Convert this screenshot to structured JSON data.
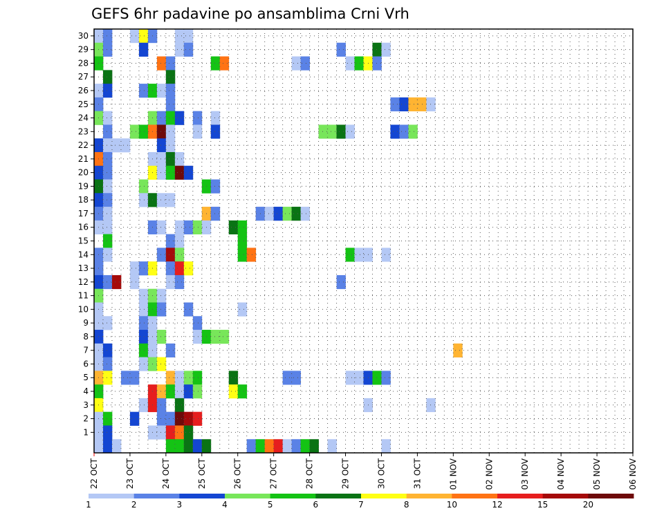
{
  "chart_data": {
    "type": "heatmap",
    "title": "GEFS 6hr padavine po ansamblima Crni Vrh",
    "xlabel": "",
    "ylabel": "",
    "x_tick_labels": [
      "22 OCT",
      "23 OCT",
      "24 OCT",
      "25 OCT",
      "26 OCT",
      "27 OCT",
      "28 OCT",
      "29 OCT",
      "30 OCT",
      "31 OCT",
      "01 NOV",
      "02 NOV",
      "03 NOV",
      "04 NOV",
      "05 NOV",
      "06 NOV"
    ],
    "y_tick_labels": [
      "1",
      "2",
      "3",
      "4",
      "5",
      "6",
      "7",
      "8",
      "9",
      "10",
      "11",
      "12",
      "13",
      "14",
      "15",
      "16",
      "17",
      "18",
      "19",
      "20",
      "21",
      "22",
      "23",
      "24",
      "25",
      "26",
      "27",
      "28",
      "29",
      "30"
    ],
    "x_range_days": [
      0,
      15
    ],
    "y_range": [
      0,
      30
    ],
    "step_hours": 6,
    "grid": true,
    "legend_placement": "bottom",
    "legend": {
      "levels": [
        "1",
        "2",
        "3",
        "4",
        "5",
        "6",
        "7",
        "8",
        "10",
        "12",
        "15",
        "20"
      ],
      "colors": [
        "#b4c8f5",
        "#5a82e6",
        "#1446d2",
        "#78e65a",
        "#14c314",
        "#0a7314",
        "#ffff14",
        "#ffb432",
        "#ff7314",
        "#e61e1e",
        "#a50a0a",
        "#6e0a0a"
      ]
    },
    "cells_note": "each cell: [member(0-30), 6h step index from 22 OCT 00Z, color class 0-12]",
    "cells": [
      [
        30,
        0,
        1
      ],
      [
        30,
        1,
        2
      ],
      [
        30,
        4,
        1
      ],
      [
        30,
        5,
        7
      ],
      [
        30,
        6,
        2
      ],
      [
        30,
        9,
        1
      ],
      [
        30,
        10,
        1
      ],
      [
        29,
        0,
        4
      ],
      [
        29,
        1,
        2
      ],
      [
        29,
        5,
        3
      ],
      [
        29,
        9,
        1
      ],
      [
        29,
        10,
        2
      ],
      [
        29,
        27,
        2
      ],
      [
        29,
        31,
        6
      ],
      [
        29,
        32,
        1
      ],
      [
        28,
        0,
        5
      ],
      [
        28,
        7,
        9
      ],
      [
        28,
        8,
        2
      ],
      [
        28,
        13,
        5
      ],
      [
        28,
        14,
        9
      ],
      [
        28,
        22,
        1
      ],
      [
        28,
        23,
        2
      ],
      [
        28,
        28,
        1
      ],
      [
        28,
        29,
        5
      ],
      [
        28,
        30,
        7
      ],
      [
        28,
        31,
        2
      ],
      [
        27,
        1,
        6
      ],
      [
        27,
        8,
        6
      ],
      [
        26,
        0,
        1
      ],
      [
        26,
        1,
        3
      ],
      [
        26,
        5,
        2
      ],
      [
        26,
        6,
        5
      ],
      [
        26,
        7,
        1
      ],
      [
        26,
        8,
        2
      ],
      [
        25,
        0,
        2
      ],
      [
        25,
        8,
        2
      ],
      [
        25,
        33,
        2
      ],
      [
        25,
        34,
        3
      ],
      [
        25,
        35,
        8
      ],
      [
        25,
        36,
        8
      ],
      [
        25,
        37,
        1
      ],
      [
        24,
        0,
        4
      ],
      [
        24,
        1,
        1
      ],
      [
        24,
        6,
        4
      ],
      [
        24,
        7,
        2
      ],
      [
        24,
        8,
        5
      ],
      [
        24,
        9,
        3
      ],
      [
        24,
        11,
        2
      ],
      [
        24,
        13,
        1
      ],
      [
        23,
        1,
        2
      ],
      [
        23,
        4,
        4
      ],
      [
        23,
        5,
        5
      ],
      [
        23,
        6,
        9
      ],
      [
        23,
        7,
        12
      ],
      [
        23,
        8,
        1
      ],
      [
        23,
        11,
        1
      ],
      [
        23,
        13,
        3
      ],
      [
        23,
        25,
        4
      ],
      [
        23,
        26,
        4
      ],
      [
        23,
        27,
        6
      ],
      [
        23,
        28,
        1
      ],
      [
        23,
        33,
        3
      ],
      [
        23,
        34,
        2
      ],
      [
        23,
        35,
        4
      ],
      [
        22,
        0,
        3
      ],
      [
        22,
        1,
        1
      ],
      [
        22,
        2,
        1
      ],
      [
        22,
        3,
        1
      ],
      [
        22,
        7,
        3
      ],
      [
        22,
        8,
        1
      ],
      [
        21,
        0,
        9
      ],
      [
        21,
        1,
        2
      ],
      [
        21,
        6,
        1
      ],
      [
        21,
        7,
        1
      ],
      [
        21,
        8,
        6
      ],
      [
        21,
        9,
        1
      ],
      [
        20,
        0,
        3
      ],
      [
        20,
        1,
        2
      ],
      [
        20,
        6,
        7
      ],
      [
        20,
        7,
        1
      ],
      [
        20,
        8,
        5
      ],
      [
        20,
        9,
        12
      ],
      [
        20,
        10,
        3
      ],
      [
        19,
        0,
        6
      ],
      [
        19,
        1,
        1
      ],
      [
        19,
        5,
        4
      ],
      [
        19,
        12,
        5
      ],
      [
        19,
        13,
        2
      ],
      [
        18,
        0,
        3
      ],
      [
        18,
        1,
        2
      ],
      [
        18,
        5,
        1
      ],
      [
        18,
        6,
        6
      ],
      [
        18,
        7,
        1
      ],
      [
        18,
        8,
        1
      ],
      [
        17,
        0,
        2
      ],
      [
        17,
        1,
        1
      ],
      [
        17,
        12,
        8
      ],
      [
        17,
        13,
        2
      ],
      [
        17,
        18,
        2
      ],
      [
        17,
        19,
        1
      ],
      [
        17,
        20,
        3
      ],
      [
        17,
        21,
        4
      ],
      [
        17,
        22,
        6
      ],
      [
        17,
        23,
        1
      ],
      [
        16,
        0,
        1
      ],
      [
        16,
        1,
        1
      ],
      [
        16,
        6,
        2
      ],
      [
        16,
        7,
        1
      ],
      [
        16,
        9,
        1
      ],
      [
        16,
        10,
        2
      ],
      [
        16,
        11,
        4
      ],
      [
        16,
        12,
        1
      ],
      [
        16,
        15,
        6
      ],
      [
        16,
        16,
        5
      ],
      [
        15,
        1,
        5
      ],
      [
        15,
        8,
        2
      ],
      [
        15,
        9,
        1
      ],
      [
        15,
        16,
        5
      ],
      [
        14,
        0,
        2
      ],
      [
        14,
        1,
        1
      ],
      [
        14,
        7,
        2
      ],
      [
        14,
        8,
        11
      ],
      [
        14,
        9,
        4
      ],
      [
        14,
        16,
        5
      ],
      [
        14,
        17,
        9
      ],
      [
        14,
        28,
        5
      ],
      [
        14,
        29,
        1
      ],
      [
        14,
        30,
        1
      ],
      [
        14,
        32,
        1
      ],
      [
        13,
        0,
        2
      ],
      [
        13,
        4,
        1
      ],
      [
        13,
        5,
        2
      ],
      [
        13,
        6,
        7
      ],
      [
        13,
        8,
        2
      ],
      [
        13,
        9,
        10
      ],
      [
        13,
        10,
        7
      ],
      [
        12,
        0,
        3
      ],
      [
        12,
        1,
        2
      ],
      [
        12,
        2,
        11
      ],
      [
        12,
        4,
        1
      ],
      [
        12,
        8,
        1
      ],
      [
        12,
        9,
        2
      ],
      [
        12,
        27,
        2
      ],
      [
        11,
        0,
        4
      ],
      [
        11,
        5,
        1
      ],
      [
        11,
        6,
        4
      ],
      [
        11,
        7,
        1
      ],
      [
        10,
        0,
        1
      ],
      [
        10,
        5,
        1
      ],
      [
        10,
        6,
        5
      ],
      [
        10,
        7,
        2
      ],
      [
        10,
        10,
        2
      ],
      [
        10,
        16,
        1
      ],
      [
        9,
        0,
        1
      ],
      [
        9,
        1,
        1
      ],
      [
        9,
        5,
        2
      ],
      [
        9,
        6,
        1
      ],
      [
        9,
        11,
        2
      ],
      [
        8,
        0,
        3
      ],
      [
        8,
        5,
        3
      ],
      [
        8,
        6,
        1
      ],
      [
        8,
        7,
        4
      ],
      [
        8,
        11,
        1
      ],
      [
        8,
        12,
        5
      ],
      [
        8,
        13,
        4
      ],
      [
        8,
        14,
        4
      ],
      [
        7,
        0,
        1
      ],
      [
        7,
        1,
        3
      ],
      [
        7,
        5,
        5
      ],
      [
        7,
        6,
        1
      ],
      [
        7,
        8,
        2
      ],
      [
        7,
        40,
        8
      ],
      [
        6,
        0,
        1
      ],
      [
        6,
        1,
        2
      ],
      [
        6,
        5,
        1
      ],
      [
        6,
        6,
        4
      ],
      [
        6,
        7,
        7
      ],
      [
        5,
        0,
        8
      ],
      [
        5,
        1,
        7
      ],
      [
        5,
        3,
        2
      ],
      [
        5,
        4,
        2
      ],
      [
        5,
        8,
        8
      ],
      [
        5,
        9,
        1
      ],
      [
        5,
        10,
        4
      ],
      [
        5,
        11,
        5
      ],
      [
        5,
        15,
        6
      ],
      [
        5,
        21,
        2
      ],
      [
        5,
        22,
        2
      ],
      [
        5,
        28,
        1
      ],
      [
        5,
        29,
        1
      ],
      [
        5,
        30,
        3
      ],
      [
        5,
        31,
        5
      ],
      [
        5,
        32,
        2
      ],
      [
        4,
        0,
        5
      ],
      [
        4,
        6,
        10
      ],
      [
        4,
        7,
        8
      ],
      [
        4,
        8,
        5
      ],
      [
        4,
        9,
        1
      ],
      [
        4,
        10,
        3
      ],
      [
        4,
        11,
        4
      ],
      [
        4,
        15,
        7
      ],
      [
        4,
        16,
        5
      ],
      [
        3,
        0,
        7
      ],
      [
        3,
        5,
        1
      ],
      [
        3,
        6,
        10
      ],
      [
        3,
        7,
        2
      ],
      [
        3,
        9,
        6
      ],
      [
        3,
        30,
        1
      ],
      [
        3,
        37,
        1
      ],
      [
        2,
        0,
        1
      ],
      [
        2,
        1,
        5
      ],
      [
        2,
        4,
        3
      ],
      [
        2,
        7,
        2
      ],
      [
        2,
        8,
        2
      ],
      [
        2,
        9,
        12
      ],
      [
        2,
        10,
        11
      ],
      [
        2,
        11,
        10
      ],
      [
        1,
        0,
        1
      ],
      [
        1,
        1,
        3
      ],
      [
        1,
        6,
        1
      ],
      [
        1,
        7,
        1
      ],
      [
        1,
        8,
        10
      ],
      [
        1,
        9,
        9
      ],
      [
        1,
        10,
        6
      ],
      [
        0,
        0,
        1
      ],
      [
        0,
        1,
        3
      ],
      [
        0,
        2,
        1
      ],
      [
        0,
        8,
        5
      ],
      [
        0,
        9,
        5
      ],
      [
        0,
        10,
        6
      ],
      [
        0,
        11,
        3
      ],
      [
        0,
        12,
        6
      ],
      [
        0,
        17,
        2
      ],
      [
        0,
        18,
        5
      ],
      [
        0,
        19,
        9
      ],
      [
        0,
        20,
        10
      ],
      [
        0,
        21,
        1
      ],
      [
        0,
        22,
        2
      ],
      [
        0,
        23,
        5
      ],
      [
        0,
        24,
        6
      ],
      [
        0,
        26,
        1
      ],
      [
        0,
        32,
        1
      ]
    ]
  }
}
